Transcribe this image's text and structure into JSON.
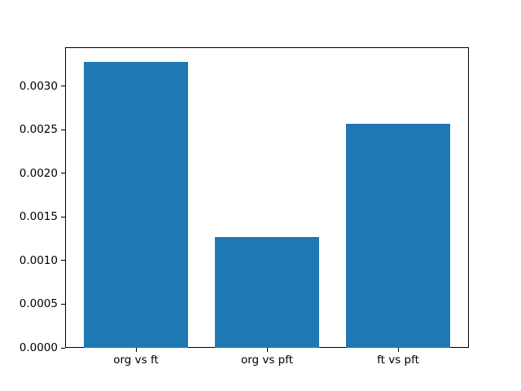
{
  "figure": {
    "background_color": "#ffffff"
  },
  "chart_data": {
    "type": "bar",
    "title": "",
    "xlabel": "",
    "ylabel": "",
    "categories": [
      "org vs ft",
      "org vs pft",
      "ft vs pft"
    ],
    "values": [
      0.00328,
      0.00127,
      0.00257
    ],
    "bar_color": "#1f77b4",
    "ylim": [
      0,
      0.003444
    ],
    "xlim": [
      -0.54,
      2.54
    ],
    "bar_width": 0.8,
    "y_ticks": [
      0.0,
      0.0005,
      0.001,
      0.0015,
      0.002,
      0.0025,
      0.003
    ],
    "y_tick_labels": [
      "0.0000",
      "0.0005",
      "0.0010",
      "0.0015",
      "0.0020",
      "0.0025",
      "0.0030"
    ],
    "grid": false,
    "legend": null
  }
}
